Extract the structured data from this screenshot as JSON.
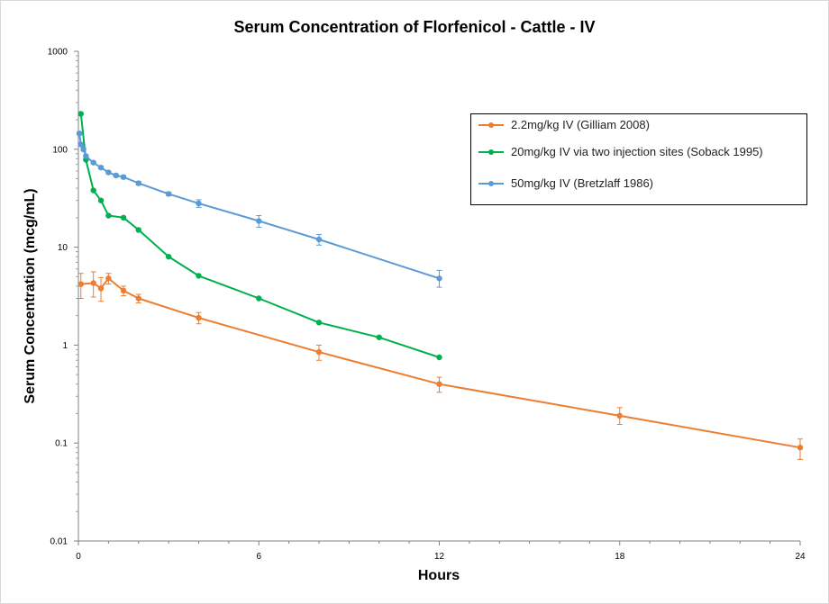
{
  "chart_data": {
    "type": "line",
    "title": "Serum Concentration of Florfenicol - Cattle - IV",
    "xlabel": "Hours",
    "ylabel": "Serum Concentration (mcg/mL)",
    "xlim": [
      0,
      24
    ],
    "ylim": [
      0.01,
      1000
    ],
    "yscale": "log",
    "x_ticks": [
      0,
      6,
      12,
      18,
      24
    ],
    "y_ticks": [
      0.01,
      0.1,
      1,
      10,
      100,
      1000
    ],
    "y_tick_labels": [
      "0.01",
      "0.1",
      "1",
      "10",
      "100",
      "1000"
    ],
    "legend_position": "top-right",
    "grid": false,
    "series": [
      {
        "name": "2.2mg/kg IV (Gilliam 2008)",
        "color": "#ed7d31",
        "x": [
          0.083,
          0.5,
          0.75,
          1,
          1.5,
          2,
          4,
          8,
          12,
          18,
          24
        ],
        "y": [
          4.2,
          4.3,
          3.8,
          4.8,
          3.6,
          3.0,
          1.9,
          0.85,
          0.4,
          0.19,
          0.09
        ],
        "error_low": [
          3.0,
          3.1,
          2.8,
          4.2,
          3.2,
          2.7,
          1.65,
          0.7,
          0.33,
          0.155,
          0.068
        ],
        "error_high": [
          5.4,
          5.6,
          4.9,
          5.4,
          4.0,
          3.3,
          2.15,
          1.0,
          0.47,
          0.23,
          0.11
        ]
      },
      {
        "name": "20mg/kg IV via two injection sites (Soback 1995)",
        "color": "#00b050",
        "x": [
          0.083,
          0.25,
          0.5,
          0.75,
          1,
          1.5,
          2,
          3,
          4,
          6,
          8,
          10,
          12
        ],
        "y": [
          230,
          78,
          38,
          30,
          21,
          20,
          15,
          8.0,
          5.1,
          3.0,
          1.7,
          1.2,
          0.75
        ]
      },
      {
        "name": "50mg/kg IV (Bretzlaff 1986)",
        "color": "#5b9bd5",
        "x": [
          0.033,
          0.083,
          0.167,
          0.25,
          0.5,
          0.75,
          1,
          1.25,
          1.5,
          2,
          3,
          4,
          6,
          8,
          12
        ],
        "y": [
          145,
          112,
          100,
          85,
          73,
          65,
          58,
          54,
          52,
          45,
          35,
          28,
          18.5,
          12.0,
          4.8
        ],
        "error_low": [
          140,
          108,
          96,
          82,
          71,
          63,
          56,
          52,
          50,
          43,
          33.5,
          25.5,
          16.0,
          10.5,
          3.9
        ],
        "error_high": [
          150,
          116,
          104,
          88,
          75,
          67,
          60,
          56,
          54,
          47,
          36.5,
          30.5,
          21.0,
          13.5,
          5.8
        ]
      }
    ]
  }
}
